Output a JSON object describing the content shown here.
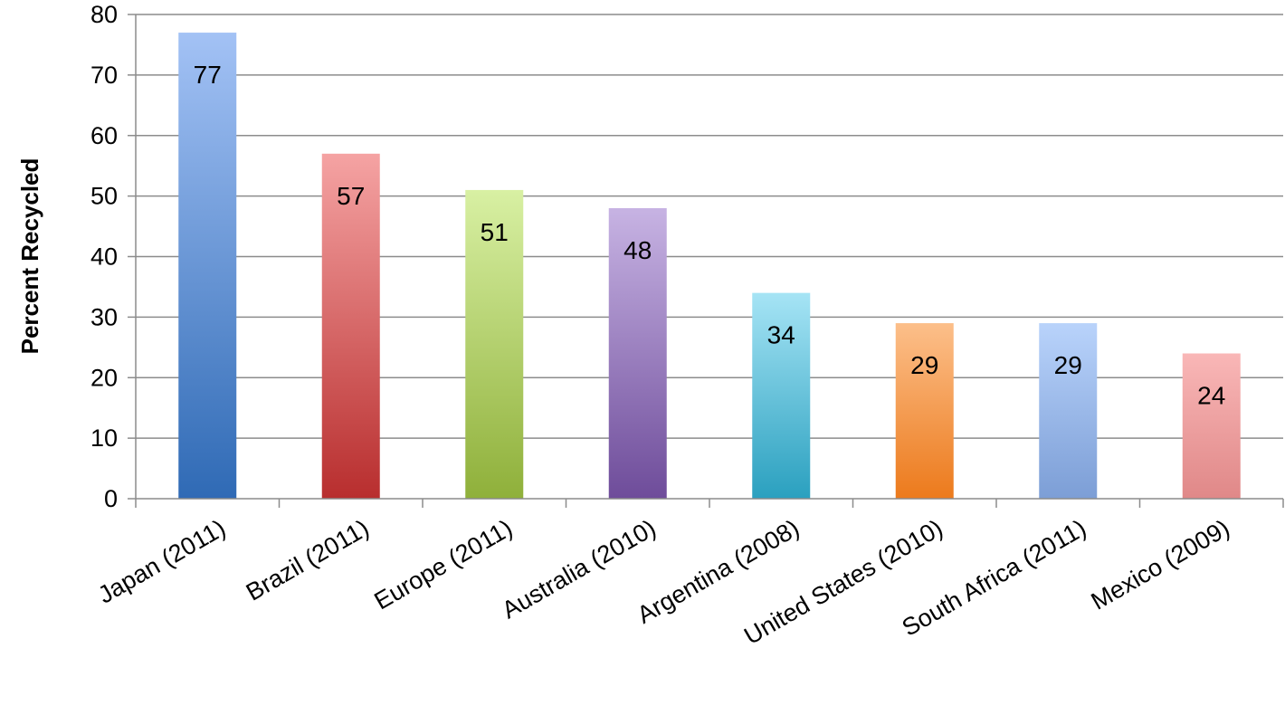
{
  "chart_data": {
    "type": "bar",
    "title": "",
    "xlabel": "",
    "ylabel": "Percent Recycled",
    "ylim": [
      0,
      80
    ],
    "yticks": [
      "0",
      "10",
      "20",
      "30",
      "40",
      "50",
      "60",
      "70",
      "80"
    ],
    "grid": true,
    "legend": "none",
    "categories": [
      "Japan (2011)",
      "Brazil (2011)",
      "Europe (2011)",
      "Australia (2010)",
      "Argentina (2008)",
      "United States (2010)",
      "South Africa (2011)",
      "Mexico (2009)"
    ],
    "values": [
      77,
      57,
      51,
      48,
      34,
      29,
      29,
      24
    ],
    "value_labels": [
      "77",
      "57",
      "51",
      "48",
      "34",
      "29",
      "29",
      "24"
    ],
    "bar_colors": [
      [
        "#a3c2f5",
        "#2f6ab5"
      ],
      [
        "#f5a3a3",
        "#b82e2e"
      ],
      [
        "#d8f0a3",
        "#8fb03a"
      ],
      [
        "#c7b3e3",
        "#6e4c9a"
      ],
      [
        "#a6e4f5",
        "#2aa0bf"
      ],
      [
        "#fcbf8a",
        "#ec7a1c"
      ],
      [
        "#b9d3fb",
        "#7c9ed6"
      ],
      [
        "#f9b7b7",
        "#e08888"
      ]
    ]
  }
}
